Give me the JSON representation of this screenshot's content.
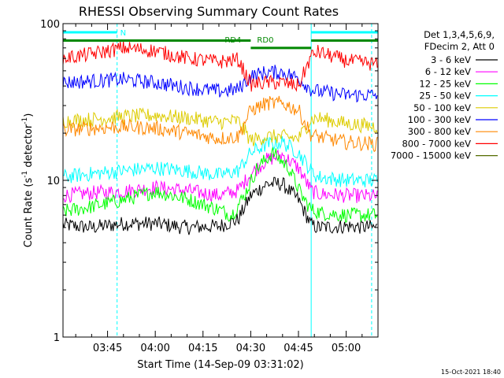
{
  "chart_data": {
    "type": "line",
    "title": "RHESSI Observing Summary Count Rates",
    "xlabel": "Start Time (14-Sep-09 03:31:02)",
    "ylabel_prefix": "Count Rate (s",
    "ylabel_sup": "-1",
    "ylabel_suffix": " detector",
    "ylabel_end": ")",
    "y_scale": "log",
    "ylim": [
      1,
      100
    ],
    "y_ticks": [
      {
        "value": 1,
        "label": "1"
      },
      {
        "value": 10,
        "label": "10"
      },
      {
        "value": 100,
        "label": "100"
      }
    ],
    "xlim": [
      "03:31",
      "05:10"
    ],
    "x_ticks": [
      {
        "value": "03:45",
        "label": "03:45"
      },
      {
        "value": "04:00",
        "label": "04:00"
      },
      {
        "value": "04:15",
        "label": "04:15"
      },
      {
        "value": "04:30",
        "label": "04:30"
      },
      {
        "value": "04:45",
        "label": "04:45"
      },
      {
        "value": "05:00",
        "label": "05:00"
      }
    ],
    "legend_header": [
      "Det 1,3,4,5,6,9,",
      "FDecim 2, Att 0"
    ],
    "legend_position": "right",
    "series": [
      {
        "name": "3 - 6 keV",
        "color": "#000000",
        "x": [
          "03:31",
          "03:40",
          "03:50",
          "04:00",
          "04:10",
          "04:20",
          "04:26",
          "04:30",
          "04:35",
          "04:40",
          "04:45",
          "04:49",
          "04:51",
          "05:00",
          "05:10"
        ],
        "values": [
          5.2,
          5.0,
          5.3,
          5.3,
          5.0,
          5.1,
          5.6,
          8.0,
          9.5,
          9.5,
          7.5,
          5.2,
          5.0,
          5.1,
          5.0
        ]
      },
      {
        "name": "6 - 12 keV",
        "color": "#ff00ff",
        "x": [
          "03:31",
          "03:40",
          "03:50",
          "04:00",
          "04:10",
          "04:20",
          "04:26",
          "04:30",
          "04:35",
          "04:40",
          "04:45",
          "04:49",
          "04:51",
          "05:00",
          "05:10"
        ],
        "values": [
          8.0,
          8.3,
          8.5,
          9.0,
          8.6,
          8.0,
          8.6,
          11.0,
          13.5,
          14.5,
          12.0,
          8.6,
          8.2,
          8.0,
          7.9
        ]
      },
      {
        "name": "12 - 25 keV",
        "color": "#00ff00",
        "x": [
          "03:31",
          "03:40",
          "03:50",
          "04:00",
          "04:10",
          "04:20",
          "04:24",
          "04:28",
          "04:32",
          "04:37",
          "04:42",
          "04:46",
          "04:49",
          "04:52",
          "05:00",
          "05:10"
        ],
        "values": [
          6.3,
          6.8,
          7.5,
          8.5,
          7.6,
          6.5,
          6.0,
          8.0,
          12.0,
          15.0,
          12.0,
          8.0,
          6.5,
          6.2,
          6.0,
          6.0
        ]
      },
      {
        "name": "25 - 50 keV",
        "color": "#00ffff",
        "x": [
          "03:31",
          "03:40",
          "03:50",
          "04:00",
          "04:10",
          "04:20",
          "04:26",
          "04:30",
          "04:35",
          "04:40",
          "04:45",
          "04:49",
          "04:51",
          "05:00",
          "05:10"
        ],
        "values": [
          10.5,
          11.0,
          11.5,
          12.0,
          11.5,
          10.8,
          11.5,
          15.0,
          17.0,
          17.5,
          15.0,
          11.5,
          10.5,
          10.0,
          10.0
        ]
      },
      {
        "name": "50 - 100 keV",
        "color": "#ddcc00",
        "x": [
          "03:31",
          "03:40",
          "03:50",
          "04:00",
          "04:10",
          "04:20",
          "04:26",
          "04:30",
          "04:35",
          "04:40",
          "04:45",
          "04:49",
          "04:51",
          "05:00",
          "05:10"
        ],
        "values": [
          24.0,
          24.5,
          25.5,
          26.0,
          25.0,
          23.5,
          24.0,
          18.0,
          19.0,
          19.0,
          18.5,
          24.5,
          25.0,
          23.0,
          22.0
        ]
      },
      {
        "name": "100 - 300 keV",
        "color": "#0000ff",
        "x": [
          "03:31",
          "03:40",
          "03:50",
          "04:00",
          "04:10",
          "04:20",
          "04:26",
          "04:30",
          "04:35",
          "04:40",
          "04:45",
          "04:49",
          "04:51",
          "05:00",
          "05:10"
        ],
        "values": [
          42.0,
          43.0,
          44.0,
          42.0,
          39.0,
          37.0,
          38.0,
          46.0,
          49.0,
          49.0,
          45.0,
          38.0,
          37.0,
          35.0,
          35.0
        ]
      },
      {
        "name": "300 - 800 keV",
        "color": "#ff8800",
        "x": [
          "03:31",
          "03:40",
          "03:50",
          "04:00",
          "04:10",
          "04:20",
          "04:26",
          "04:30",
          "04:35",
          "04:40",
          "04:45",
          "04:49",
          "04:51",
          "05:00",
          "05:10"
        ],
        "values": [
          21.0,
          21.5,
          22.0,
          21.5,
          20.0,
          18.5,
          19.0,
          28.0,
          31.0,
          31.0,
          28.0,
          19.5,
          19.0,
          17.5,
          17.0
        ]
      },
      {
        "name": "800 - 7000 keV",
        "color": "#ff0000",
        "x": [
          "03:31",
          "03:40",
          "03:50",
          "04:00",
          "04:10",
          "04:20",
          "04:26",
          "04:30",
          "04:35",
          "04:40",
          "04:45",
          "04:49",
          "04:51",
          "05:00",
          "05:10"
        ],
        "values": [
          60.0,
          64.0,
          70.0,
          67.0,
          60.0,
          57.0,
          59.0,
          41.0,
          42.0,
          42.0,
          40.0,
          62.0,
          66.0,
          58.0,
          55.0
        ]
      },
      {
        "name": "7000 - 15000 keV",
        "color": "#556b00",
        "x": [
          "04:30",
          "04:35",
          "04:40",
          "04:45",
          "04:49"
        ],
        "values": [
          1.0,
          1.0,
          1.0,
          1.0,
          1.0
        ]
      }
    ],
    "attenuator_level": 78,
    "annotations": [
      {
        "label": "N",
        "x": "03:48",
        "color": "#00ffff"
      },
      {
        "label": "RD4",
        "x": "04:29",
        "color": "#008800"
      },
      {
        "label": "RD0",
        "x": "04:31",
        "color": "#008800"
      }
    ],
    "time_stamp": "15-Oct-2021 18:40"
  }
}
